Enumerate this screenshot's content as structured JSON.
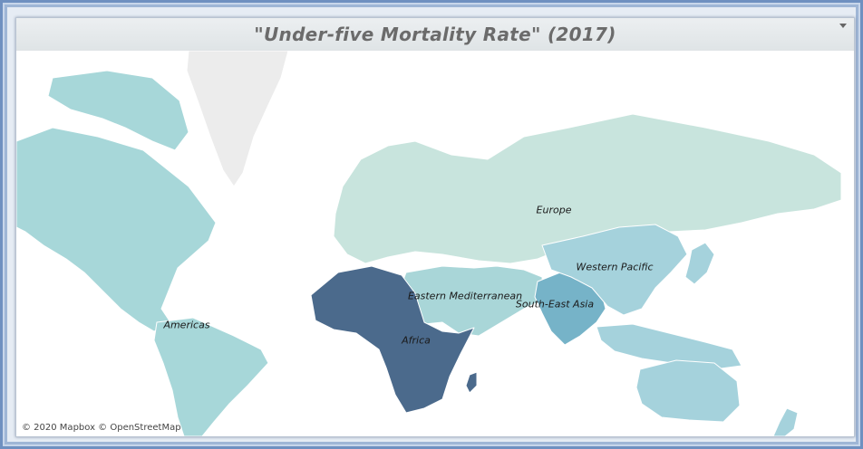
{
  "header": {
    "title": "\"Under-five Mortality Rate\" (2017)"
  },
  "map": {
    "attribution": "© 2020 Mapbox © OpenStreetMap",
    "colors": {
      "africa": "#4b6a8c",
      "eastern_mediterranean": "#a9d6d8",
      "south_east_asia": "#76b3c8",
      "western_pacific": "#a5d2dc",
      "americas": "#a7d7d9",
      "europe": "#c8e4dd",
      "greenland": "#ececec"
    },
    "regions": [
      {
        "key": "europe",
        "label": "Europe"
      },
      {
        "key": "western_pacific",
        "label": "Western Pacific"
      },
      {
        "key": "eastern_mediterranean",
        "label": "Eastern Mediterranean"
      },
      {
        "key": "south_east_asia",
        "label": "South-East Asia"
      },
      {
        "key": "americas",
        "label": "Americas"
      },
      {
        "key": "africa",
        "label": "Africa"
      }
    ]
  }
}
